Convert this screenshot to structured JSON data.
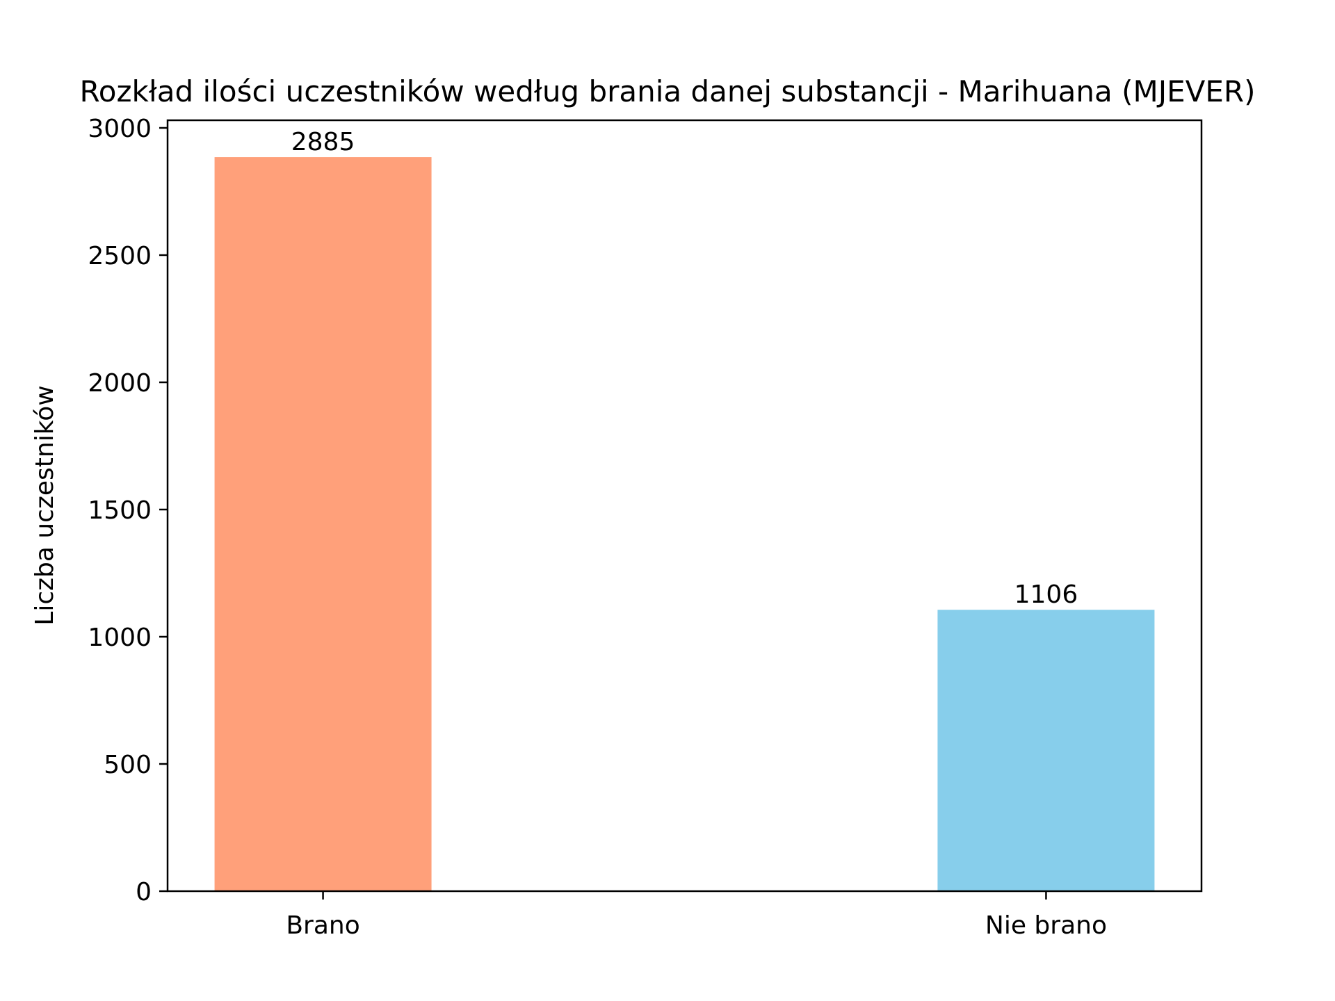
{
  "chart_data": {
    "type": "bar",
    "title": "Rozkład ilości uczestników według brania danej substancji - Marihuana (MJEVER)",
    "xlabel": "",
    "ylabel": "Liczba uczestników",
    "categories": [
      "Brano",
      "Nie brano"
    ],
    "values": [
      2885,
      1106
    ],
    "data_labels": [
      "2885",
      "1106"
    ],
    "colors": [
      "#FFA07A",
      "#87CEEB"
    ],
    "ylim": [
      0,
      3030
    ],
    "yticks": [
      0,
      500,
      1000,
      1500,
      2000,
      2500,
      3000
    ],
    "ytick_labels": [
      "0",
      "500",
      "1000",
      "1500",
      "2000",
      "2500",
      "3000"
    ],
    "grid": false,
    "legend": "none"
  }
}
